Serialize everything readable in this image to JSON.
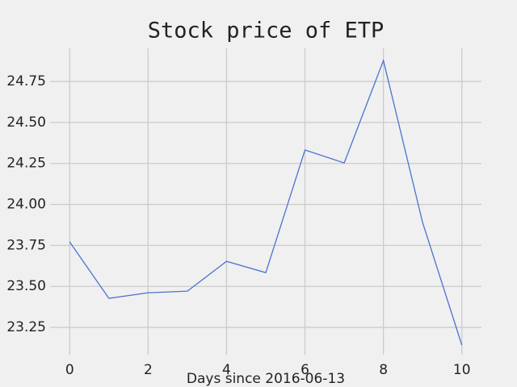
{
  "chart_data": {
    "type": "line",
    "title": "Stock price of ETP",
    "x_label": "Days since 2016-06-13",
    "x": [
      0,
      1,
      2,
      3,
      4,
      5,
      6,
      7,
      8,
      9,
      10
    ],
    "series": [
      {
        "name": "ETP",
        "color": "#4a72cf",
        "values": [
          23.771,
          23.427,
          23.461,
          23.471,
          23.653,
          23.584,
          24.332,
          24.253,
          24.878,
          23.889,
          23.142
        ]
      }
    ],
    "xlim": [
      -0.5,
      10.5
    ],
    "xticks": [
      0,
      2,
      4,
      6,
      8,
      10
    ],
    "ylim": [
      23.083,
      24.952
    ],
    "yticks": [
      23.25,
      {
        "value": 23.5,
        "label": "23.50"
      },
      23.75,
      {
        "value": 24.0,
        "label": "24.00"
      },
      24.25,
      {
        "value": 24.5,
        "label": "24.50"
      },
      24.75
    ],
    "grid": true
  }
}
